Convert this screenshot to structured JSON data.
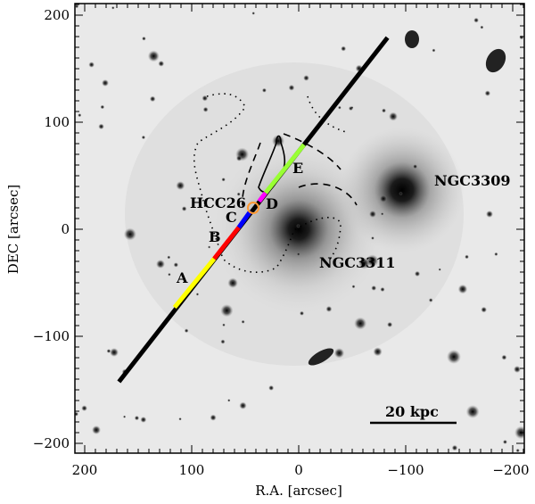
{
  "chart_data": {
    "type": "image",
    "xlabel": "R.A. [arcsec]",
    "ylabel": "DEC [arcsec]",
    "xlim": [
      209,
      -211
    ],
    "ylim": [
      -210,
      210
    ],
    "xticks": [
      200,
      100,
      0,
      -100,
      -200
    ],
    "yticks": [
      -200,
      -100,
      0,
      100,
      200
    ],
    "xtick_labels": [
      "200",
      "100",
      "0",
      "−100",
      "−200"
    ],
    "ytick_labels": [
      "−200",
      "−100",
      "0",
      "100",
      "200"
    ],
    "colormap": "inverted grayscale",
    "annotations": {
      "ngc3309": "NGC3309",
      "ngc3311": "NGC3311",
      "hcc26": "HCC26",
      "A": "A",
      "B": "B",
      "C": "C",
      "D": "D",
      "E": "E",
      "scale_bar": "20 kpc"
    },
    "objects": [
      {
        "name": "NGC3311",
        "ra": 0,
        "dec": 0
      },
      {
        "name": "NGC3309",
        "ra": -97,
        "dec": 36
      },
      {
        "name": "HCC26",
        "ra": 42.5,
        "dec": 20
      }
    ],
    "slit": {
      "start": [
        168,
        -142.5
      ],
      "end": [
        -83,
        179
      ],
      "segments": [
        {
          "label": "A",
          "from": [
            116,
            -73
          ],
          "to": [
            79,
            -27.5
          ],
          "color": "#ffff00"
        },
        {
          "label": "B",
          "from": [
            79,
            -27.5
          ],
          "to": [
            56,
            1.7
          ],
          "color": "#ff0000"
        },
        {
          "label": "C",
          "from": [
            56,
            1.7
          ],
          "to": [
            45,
            17
          ],
          "color": "#0000ff"
        },
        {
          "label": "D",
          "from": [
            37,
            26
          ],
          "to": [
            31,
            34
          ],
          "color": "#ff00ff"
        },
        {
          "label": "E",
          "from": [
            31,
            34
          ],
          "to": [
            -5,
            79
          ],
          "color": "#99ff33"
        }
      ],
      "line_color": "#000000"
    },
    "hcc26_marker_color": "#ff9933"
  }
}
